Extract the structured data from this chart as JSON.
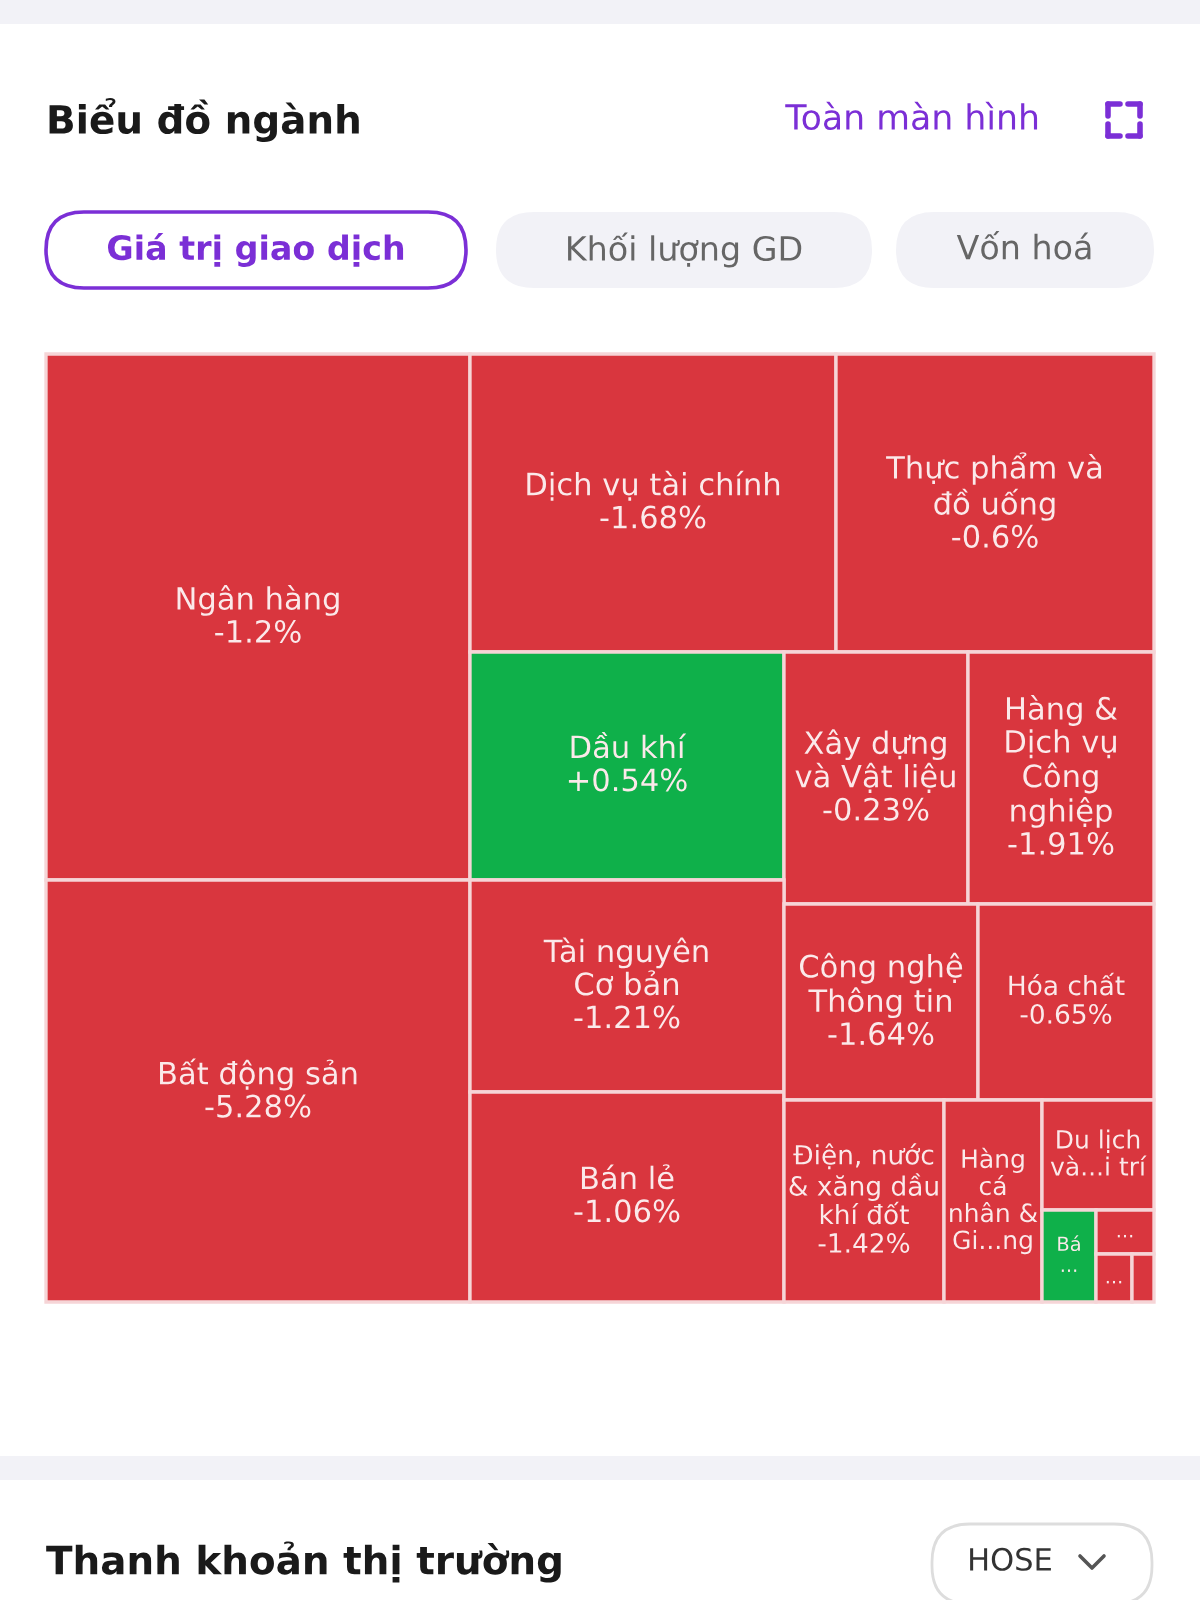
{
  "chart_data": {
    "type": "other",
    "title": "Biểu đồ ngành",
    "annotations": [
      "Toàn màn hình",
      "Giá trị giao dịch",
      "Khối lượng GD",
      "Vốn hoá",
      "Thanh khoản thị trường",
      "HOSE"
    ],
    "categories": [
      "Ngân hàng",
      "Bất động sản",
      "Dịch vụ tài chính",
      "Thực phẩm và\nđồ uống",
      "Dầu khí",
      "Xây dựng\nvà Vật liệu",
      "Hàng &\nDịch vụ\nCông\nnghiệp",
      "Tài nguyên\nCơ bản",
      "Bán lẻ",
      "Công nghệ\nThông tin",
      "Hóa chất",
      "Điện, nước\n& xăng dầu\nkhí đốt",
      "Hàng\ncá\nnhân &\nGi...ng",
      "Du lịch\nvà...i trí",
      "Bá\n...",
      "...",
      "...",
      null
    ],
    "values": [
      -1.2,
      -5.28,
      -1.68,
      -0.6,
      0.54,
      -0.23,
      -1.91,
      -1.21,
      -1.06,
      -1.64,
      -0.65,
      -1.42,
      null,
      null,
      null,
      null,
      null,
      null
    ],
    "value_labels": [
      "-1.2%",
      "-5.28%",
      "-1.68%",
      "-0.6%",
      "+0.54%",
      "-0.23%",
      "-1.91%",
      "-1.21%",
      "-1.06%",
      "-1.64%",
      "-0.65%",
      "-1.42%",
      null,
      null,
      null,
      null,
      null,
      null
    ],
    "colors": [
      "#d9363e",
      "#d9363e",
      "#d9363e",
      "#d9363e",
      "#0fb04a",
      "#d9363e",
      "#d9363e",
      "#d9363e",
      "#d9363e",
      "#d9363e",
      "#d9363e",
      "#d9363e",
      "#d9363e",
      "#d9363e",
      "#0fb04a",
      "#d9363e",
      "#d9363e",
      "#d9363e"
    ]
  }
}
